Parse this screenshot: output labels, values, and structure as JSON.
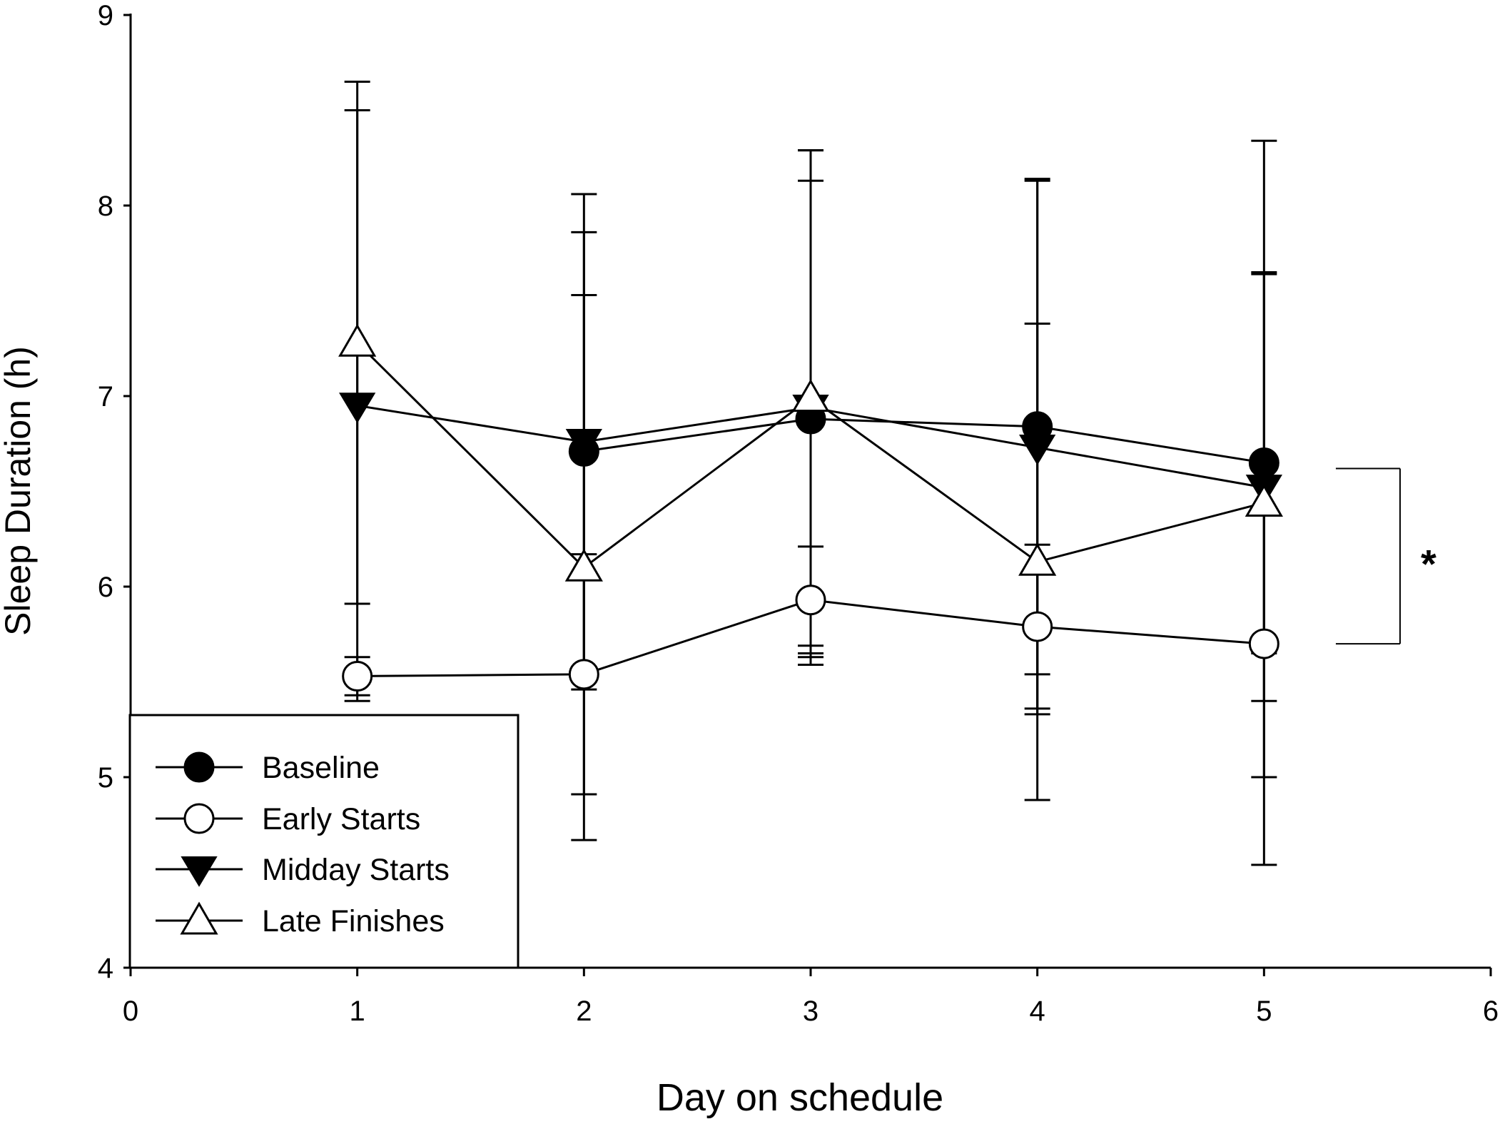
{
  "chart_data": {
    "type": "line",
    "title": "",
    "xlabel": "Day on schedule",
    "ylabel": "Sleep Duration (h)",
    "xlim": [
      0,
      6
    ],
    "ylim": [
      4,
      9
    ],
    "xticks": [
      0,
      1,
      2,
      3,
      4,
      5,
      6
    ],
    "yticks": [
      4,
      5,
      6,
      7,
      8,
      9
    ],
    "grid": false,
    "legend_position": "bottom-left",
    "x": [
      1,
      2,
      3,
      4,
      5
    ],
    "series": [
      {
        "name": "Baseline",
        "marker": "filled-circle",
        "values": [
          null,
          6.71,
          6.88,
          6.84,
          6.65
        ],
        "error": [
          null,
          1.15,
          1.25,
          1.3,
          1.0
        ]
      },
      {
        "name": "Early Starts",
        "marker": "open-circle",
        "values": [
          5.53,
          5.54,
          5.93,
          5.79,
          5.7
        ],
        "error": [
          0.1,
          0.63,
          0.28,
          0.43,
          0.7
        ]
      },
      {
        "name": "Midday Starts",
        "marker": "filled-triangle-down",
        "values": [
          6.95,
          6.76,
          6.94,
          6.73,
          6.52
        ],
        "error": [
          1.55,
          1.3,
          1.35,
          1.4,
          1.12
        ]
      },
      {
        "name": "Late Finishes",
        "marker": "open-triangle-up",
        "values": [
          7.28,
          6.1,
          6.99,
          6.13,
          6.44
        ],
        "error": [
          1.37,
          1.43,
          1.3,
          1.25,
          1.9
        ]
      }
    ],
    "annotations": [
      {
        "text": "*",
        "type": "significance-bracket",
        "from_value": 6.62,
        "to_value": 5.7,
        "at_x": 5.6
      }
    ]
  }
}
